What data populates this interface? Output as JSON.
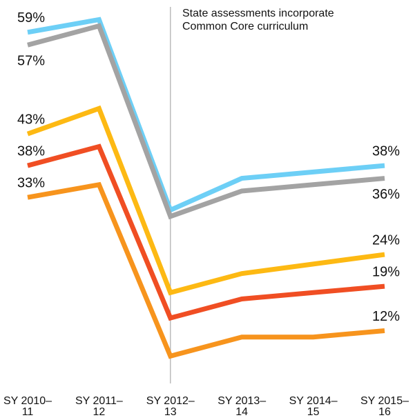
{
  "chart_data": {
    "type": "line",
    "categories": [
      "SY 2010–11",
      "SY 2011–12",
      "SY 2012–13",
      "SY 2013–14",
      "SY 2014–15",
      "SY 2015–16"
    ],
    "annotation": "State assessments incorporate Common Core curriculum",
    "annotation_category": 2,
    "ylim": [
      0,
      63
    ],
    "series": [
      {
        "color": "#6dcff6",
        "values": [
          59,
          61,
          31,
          36,
          37,
          38
        ],
        "value_labels": [
          "59%",
          null,
          null,
          null,
          null,
          "38%"
        ]
      },
      {
        "color": "#a3a3a3",
        "values": [
          57,
          60,
          30,
          34,
          35,
          36
        ],
        "value_labels": [
          "57%",
          null,
          null,
          null,
          null,
          "36%"
        ]
      },
      {
        "color": "#fdb913",
        "values": [
          43,
          47,
          18,
          21,
          22.5,
          24
        ],
        "value_labels": [
          "43%",
          null,
          null,
          null,
          null,
          "24%"
        ]
      },
      {
        "color": "#f04e23",
        "values": [
          38,
          41,
          14,
          17,
          18,
          19
        ],
        "value_labels": [
          "38%",
          null,
          null,
          null,
          null,
          "19%"
        ]
      },
      {
        "color": "#f7941d",
        "values": [
          33,
          35,
          8,
          11,
          11,
          12
        ],
        "value_labels": [
          "33%",
          null,
          null,
          null,
          null,
          "12%"
        ]
      }
    ]
  }
}
